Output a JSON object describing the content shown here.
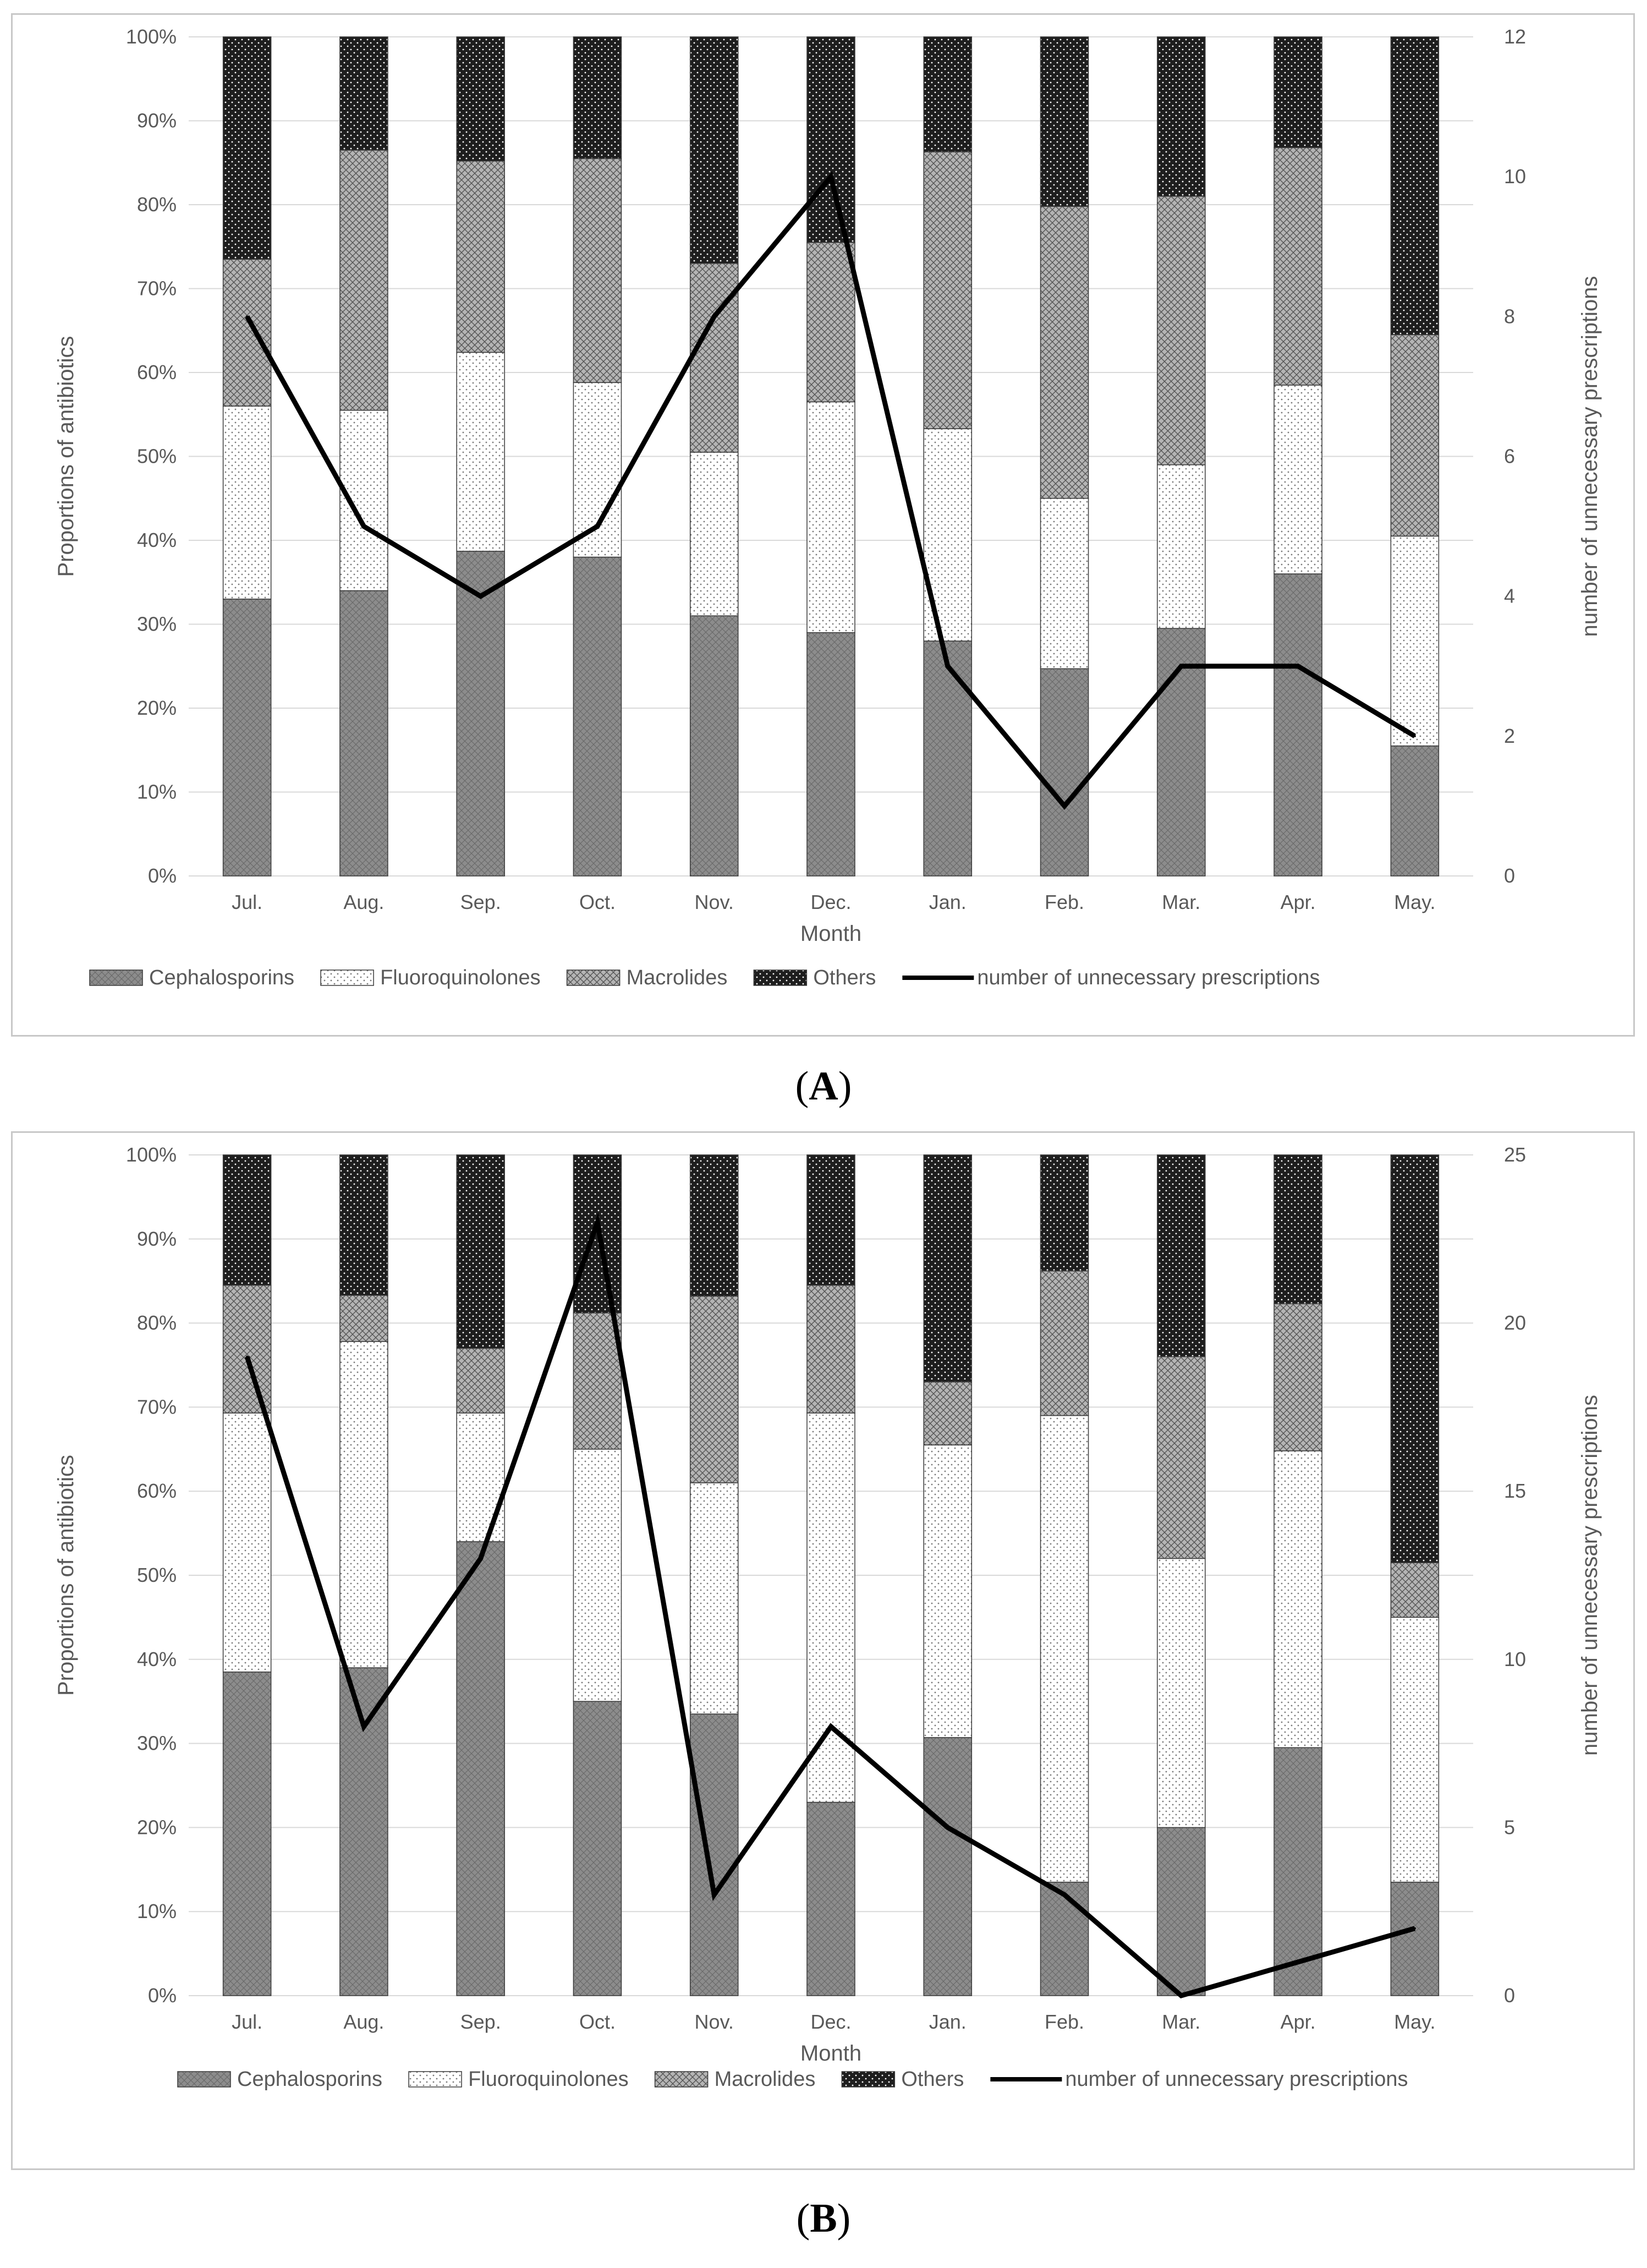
{
  "colors": {
    "Cephalosporins": "#8c8c8c",
    "Fluoroquinolones": "#ececec",
    "Macrolides": "#b4b4b4",
    "Others": "#1e1e1e",
    "line": "#000000",
    "grid": "#d9d9d9",
    "text": "#595959"
  },
  "captions": {
    "a": "A",
    "b": "B"
  },
  "chart_data": [
    {
      "id": "a",
      "type": "bar",
      "stacked": true,
      "categories": [
        "Jul.",
        "Aug.",
        "Sep.",
        "Oct.",
        "Nov.",
        "Dec.",
        "Jan.",
        "Feb.",
        "Mar.",
        "Apr.",
        "May."
      ],
      "xlabel": "Month",
      "ylabel": "Proportions of antibiotics",
      "y2label": "number of unnecessary prescriptions",
      "ylim": [
        0,
        100
      ],
      "y2lim": [
        0,
        12
      ],
      "yticks": [
        "0%",
        "10%",
        "20%",
        "30%",
        "40%",
        "50%",
        "60%",
        "70%",
        "80%",
        "90%",
        "100%"
      ],
      "y2ticks": [
        "0",
        "2",
        "4",
        "6",
        "8",
        "10",
        "12"
      ],
      "series": [
        {
          "name": "Cephalosporins",
          "values": [
            33,
            34,
            38.7,
            38,
            31,
            29,
            28,
            24.7,
            29.5,
            36,
            15.5
          ]
        },
        {
          "name": "Fluoroquinolones",
          "values": [
            23,
            21.5,
            23.7,
            20.8,
            19.5,
            27.5,
            25.3,
            20.3,
            19.5,
            22.5,
            25
          ]
        },
        {
          "name": "Macrolides",
          "values": [
            17.5,
            31,
            22.8,
            26.7,
            22.5,
            19,
            33,
            34.8,
            32,
            28.3,
            24
          ]
        },
        {
          "name": "Others",
          "values": [
            26.5,
            13.5,
            14.8,
            14.5,
            27,
            24.5,
            13.7,
            20.2,
            19,
            13.2,
            35.5
          ]
        }
      ],
      "line": {
        "name": "number of unnecessary prescriptions",
        "values": [
          8,
          5,
          4,
          5,
          8,
          10,
          3,
          1,
          3,
          3,
          2
        ]
      },
      "legend_position": "bottom"
    },
    {
      "id": "b",
      "type": "bar",
      "stacked": true,
      "categories": [
        "Jul.",
        "Aug.",
        "Sep.",
        "Oct.",
        "Nov.",
        "Dec.",
        "Jan.",
        "Feb.",
        "Mar.",
        "Apr.",
        "May."
      ],
      "xlabel": "Month",
      "ylabel": "Proportions of antibiotics",
      "y2label": "number of unnecessary prescriptions",
      "ylim": [
        0,
        100
      ],
      "y2lim": [
        0,
        25
      ],
      "yticks": [
        "0%",
        "10%",
        "20%",
        "30%",
        "40%",
        "50%",
        "60%",
        "70%",
        "80%",
        "90%",
        "100%"
      ],
      "y2ticks": [
        "0",
        "5",
        "10",
        "15",
        "20",
        "25"
      ],
      "series": [
        {
          "name": "Cephalosporins",
          "values": [
            38.5,
            39,
            54,
            35,
            33.5,
            23,
            30.7,
            13.5,
            20,
            29.5,
            13.5
          ]
        },
        {
          "name": "Fluoroquinolones",
          "values": [
            30.8,
            38.8,
            15.3,
            30,
            27.5,
            46.3,
            34.8,
            55.5,
            32,
            35.3,
            31.5
          ]
        },
        {
          "name": "Macrolides",
          "values": [
            15.2,
            5.5,
            7.7,
            16.2,
            22.2,
            15.2,
            7.5,
            17.2,
            24,
            17.5,
            6.5
          ]
        },
        {
          "name": "Others",
          "values": [
            15.5,
            16.7,
            23,
            18.8,
            16.8,
            15.5,
            27,
            13.8,
            24,
            17.7,
            48.5
          ]
        }
      ],
      "line": {
        "name": "number of unnecessary prescriptions",
        "values": [
          19,
          8,
          13,
          23,
          3,
          8,
          5,
          3,
          0,
          1,
          2
        ]
      },
      "legend_position": "bottom"
    }
  ]
}
